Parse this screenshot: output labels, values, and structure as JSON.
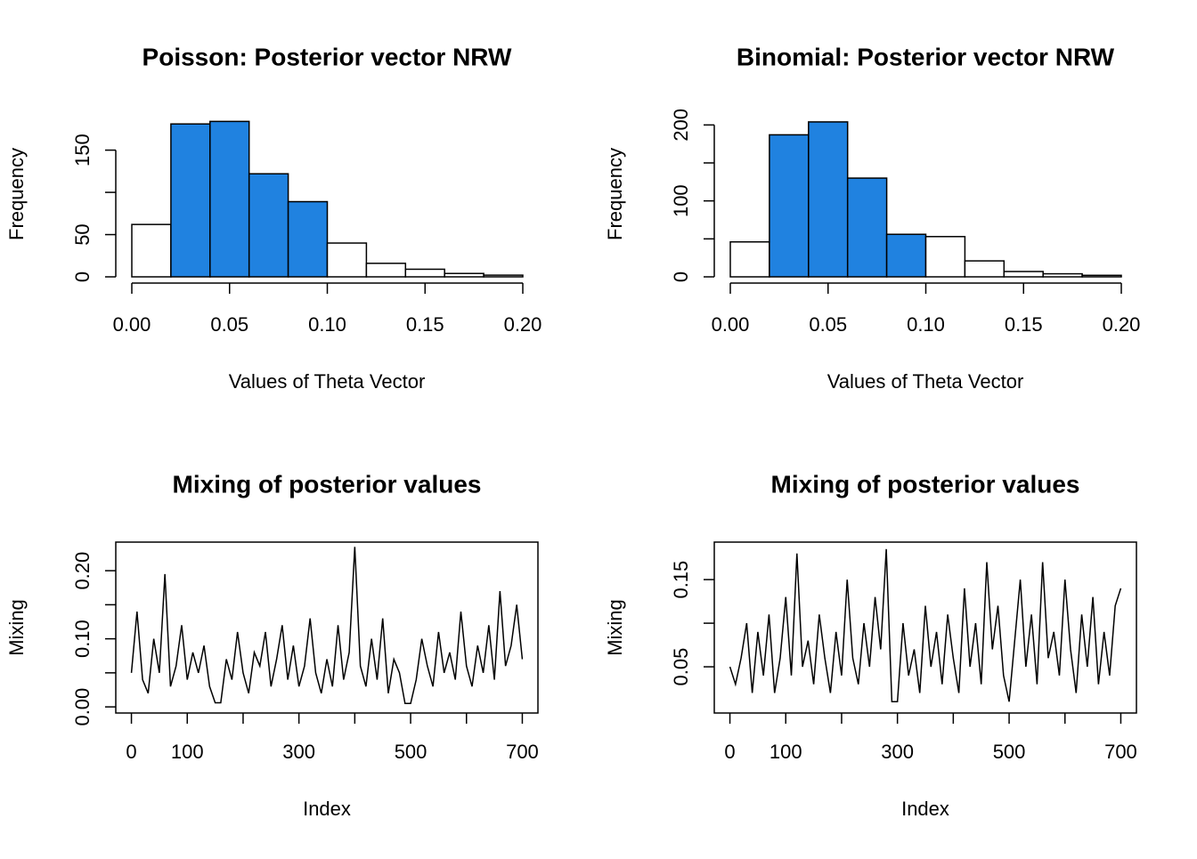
{
  "chart_data": [
    {
      "type": "histogram",
      "title": "Poisson: Posterior vector NRW",
      "x_label": "Values of Theta Vector",
      "y_label": "Frequency",
      "bins": [
        0,
        0.02,
        0.04,
        0.06,
        0.08,
        0.1,
        0.12,
        0.14,
        0.16,
        0.18,
        0.2
      ],
      "values": [
        62,
        181,
        184,
        122,
        89,
        40,
        16,
        9,
        4,
        2
      ],
      "colors": [
        "#ffffff",
        "#2082e0",
        "#2082e0",
        "#2082e0",
        "#2082e0",
        "#ffffff",
        "#ffffff",
        "#ffffff",
        "#ffffff",
        "#ffffff"
      ],
      "xlim": [
        0,
        0.2
      ],
      "xticks": [
        {
          "value": 0,
          "label": "0.00"
        },
        0.05,
        {
          "value": 0.1,
          "label": "0.10"
        },
        0.15,
        {
          "value": 0.2,
          "label": "0.20"
        }
      ],
      "ylim": [
        0,
        196
      ],
      "yticks": [
        0,
        50,
        150
      ],
      "yticks_unlabeled": [
        100
      ]
    },
    {
      "type": "histogram",
      "title": "Binomial: Posterior vector NRW",
      "x_label": "Values of Theta Vector",
      "y_label": "Frequency",
      "bins": [
        0,
        0.02,
        0.04,
        0.06,
        0.08,
        0.1,
        0.12,
        0.14,
        0.16,
        0.18,
        0.2
      ],
      "values": [
        46,
        187,
        204,
        130,
        56,
        53,
        21,
        7,
        4,
        2
      ],
      "colors": [
        "#ffffff",
        "#2082e0",
        "#2082e0",
        "#2082e0",
        "#2082e0",
        "#ffffff",
        "#ffffff",
        "#ffffff",
        "#ffffff",
        "#ffffff"
      ],
      "xlim": [
        0,
        0.2
      ],
      "xticks": [
        {
          "value": 0,
          "label": "0.00"
        },
        0.05,
        {
          "value": 0.1,
          "label": "0.10"
        },
        0.15,
        {
          "value": 0.2,
          "label": "0.20"
        }
      ],
      "ylim": [
        0,
        218
      ],
      "yticks": [
        0,
        100,
        200
      ],
      "yticks_unlabeled": [
        50,
        150
      ]
    },
    {
      "type": "line",
      "title": "Mixing of posterior values",
      "x_label": "Index",
      "y_label": "Mixing",
      "color": "#000000",
      "x": [
        0,
        10,
        20,
        30,
        40,
        50,
        60,
        70,
        80,
        90,
        100,
        110,
        120,
        130,
        140,
        150,
        160,
        170,
        180,
        190,
        200,
        210,
        220,
        230,
        240,
        250,
        260,
        270,
        280,
        290,
        300,
        310,
        320,
        330,
        340,
        350,
        360,
        370,
        380,
        390,
        400,
        410,
        420,
        430,
        440,
        450,
        460,
        470,
        480,
        490,
        500,
        510,
        520,
        530,
        540,
        550,
        560,
        570,
        580,
        590,
        600,
        610,
        620,
        630,
        640,
        650,
        660,
        670,
        680,
        690,
        700
      ],
      "values": [
        0.05,
        0.14,
        0.04,
        0.02,
        0.1,
        0.05,
        0.195,
        0.03,
        0.06,
        0.12,
        0.04,
        0.08,
        0.05,
        0.09,
        0.03,
        0.006,
        0.006,
        0.07,
        0.04,
        0.11,
        0.05,
        0.02,
        0.08,
        0.06,
        0.11,
        0.03,
        0.07,
        0.12,
        0.04,
        0.09,
        0.03,
        0.06,
        0.13,
        0.05,
        0.02,
        0.07,
        0.03,
        0.12,
        0.04,
        0.08,
        0.235,
        0.06,
        0.03,
        0.1,
        0.04,
        0.13,
        0.02,
        0.07,
        0.05,
        0.005,
        0.005,
        0.04,
        0.1,
        0.06,
        0.03,
        0.11,
        0.05,
        0.08,
        0.04,
        0.14,
        0.06,
        0.03,
        0.09,
        0.05,
        0.12,
        0.04,
        0.17,
        0.06,
        0.09,
        0.15,
        0.07
      ],
      "xlim": [
        -28,
        728
      ],
      "xticks": [
        0,
        100,
        300,
        500,
        700
      ],
      "xticks_unlabeled": [
        200,
        400,
        600
      ],
      "ylim": [
        -0.009,
        0.242
      ],
      "yticks": [
        {
          "value": 0,
          "label": "0.00"
        },
        {
          "value": 0.1,
          "label": "0.10"
        },
        {
          "value": 0.2,
          "label": "0.20"
        }
      ],
      "yticks_unlabeled": [
        0.05,
        0.15
      ]
    },
    {
      "type": "line",
      "title": "Mixing of posterior values",
      "x_label": "Index",
      "y_label": "Mixing",
      "color": "#000000",
      "x": [
        0,
        10,
        20,
        30,
        40,
        50,
        60,
        70,
        80,
        90,
        100,
        110,
        120,
        130,
        140,
        150,
        160,
        170,
        180,
        190,
        200,
        210,
        220,
        230,
        240,
        250,
        260,
        270,
        280,
        290,
        300,
        310,
        320,
        330,
        340,
        350,
        360,
        370,
        380,
        390,
        400,
        410,
        420,
        430,
        440,
        450,
        460,
        470,
        480,
        490,
        500,
        510,
        520,
        530,
        540,
        550,
        560,
        570,
        580,
        590,
        600,
        610,
        620,
        630,
        640,
        650,
        660,
        670,
        680,
        690,
        700
      ],
      "values": [
        0.05,
        0.03,
        0.06,
        0.1,
        0.02,
        0.09,
        0.04,
        0.11,
        0.02,
        0.06,
        0.13,
        0.04,
        0.18,
        0.05,
        0.08,
        0.03,
        0.11,
        0.06,
        0.02,
        0.09,
        0.04,
        0.15,
        0.06,
        0.03,
        0.1,
        0.05,
        0.13,
        0.07,
        0.185,
        0.01,
        0.01,
        0.1,
        0.04,
        0.07,
        0.02,
        0.12,
        0.05,
        0.09,
        0.03,
        0.11,
        0.06,
        0.02,
        0.14,
        0.05,
        0.1,
        0.03,
        0.17,
        0.07,
        0.12,
        0.04,
        0.01,
        0.08,
        0.15,
        0.05,
        0.11,
        0.03,
        0.17,
        0.06,
        0.09,
        0.04,
        0.15,
        0.07,
        0.02,
        0.11,
        0.05,
        0.13,
        0.03,
        0.09,
        0.04,
        0.12,
        0.14
      ],
      "xlim": [
        -28,
        728
      ],
      "xticks": [
        0,
        100,
        300,
        500,
        700
      ],
      "xticks_unlabeled": [
        200,
        400,
        600
      ],
      "ylim": [
        -0.003,
        0.193
      ],
      "yticks": [
        0.05,
        0.15
      ],
      "yticks_unlabeled": [
        {
          "value": 0.1,
          "label": "0.10"
        }
      ]
    }
  ]
}
